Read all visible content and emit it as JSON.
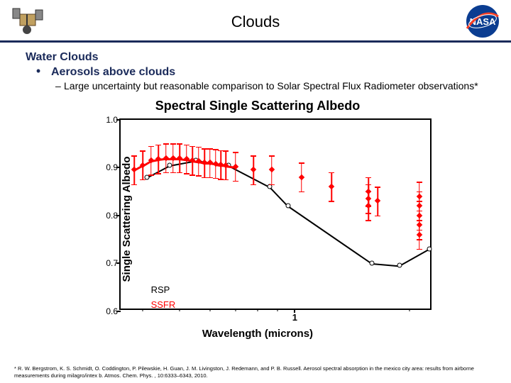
{
  "header": {
    "title": "Clouds",
    "rule_color": "#1a2a5a",
    "nasa_blue": "#0b3d91",
    "nasa_red": "#fc3d21"
  },
  "text": {
    "water_clouds": "Water Clouds",
    "water_color": "#1a2a5a",
    "aerosols": "Aerosols above clouds",
    "aerosols_color": "#1a2a5a",
    "bullet_color": "#1a2a5a",
    "subpoint": "Large uncertainty but reasonable comparison to Solar Spectral Flux Radiometer observations*"
  },
  "chart": {
    "title": "Spectral Single Scattering Albedo",
    "title_fontsize": 18,
    "ylabel": "Single Scattering Albedo",
    "xlabel": "Wavelength (microns)",
    "label_fontsize": 15,
    "ylim": [
      0.6,
      1.0
    ],
    "yticks": [
      0.6,
      0.7,
      0.8,
      0.9,
      1.0
    ],
    "xlim": [
      0.35,
      2.3
    ],
    "xscale": "log",
    "xtick_major": [
      1
    ],
    "xtick_major_labels": [
      "1"
    ],
    "xtick_minor": [
      0.4,
      0.5,
      0.6,
      0.7,
      0.8,
      0.9,
      2.0
    ],
    "series_black": {
      "label": "RSP",
      "color": "#000000",
      "x": [
        0.41,
        0.47,
        0.55,
        0.67,
        0.86,
        0.96,
        1.59,
        1.88,
        2.25
      ],
      "y": [
        0.88,
        0.905,
        0.915,
        0.905,
        0.86,
        0.82,
        0.7,
        0.695,
        0.73
      ]
    },
    "series_red": {
      "label": "SSFR",
      "color": "#ff0000",
      "marker": "diamond",
      "line_x": [
        0.38,
        0.4,
        0.42,
        0.44,
        0.46,
        0.48,
        0.5,
        0.52,
        0.54,
        0.56,
        0.58,
        0.6,
        0.62,
        0.64,
        0.66,
        0.7
      ],
      "line_y": [
        0.895,
        0.905,
        0.915,
        0.918,
        0.92,
        0.92,
        0.92,
        0.918,
        0.915,
        0.913,
        0.91,
        0.91,
        0.908,
        0.906,
        0.905,
        0.902
      ],
      "extra_x": [
        0.78,
        0.87,
        1.04,
        1.25,
        1.56,
        1.56,
        1.56,
        1.65,
        2.12,
        2.12,
        2.12,
        2.12,
        2.12
      ],
      "extra_y": [
        0.895,
        0.895,
        0.88,
        0.86,
        0.85,
        0.835,
        0.82,
        0.83,
        0.84,
        0.82,
        0.8,
        0.78,
        0.76
      ],
      "err": 0.03
    },
    "legend": {
      "x": 0.42,
      "y_rsp": 0.655,
      "y_ssfr": 0.625
    }
  },
  "citation": "* R. W. Bergstrom, K. S. Schmidt, O. Coddington, P. Pilewskie, H. Guan, J. M. Livingston, J. Redemann, and P. B. Russell. Aerosol spectral absorption in the mexico city area: results from airborne measurements during milagro/intex b. Atmos. Chem. Phys. , 10:6333–6343, 2010."
}
